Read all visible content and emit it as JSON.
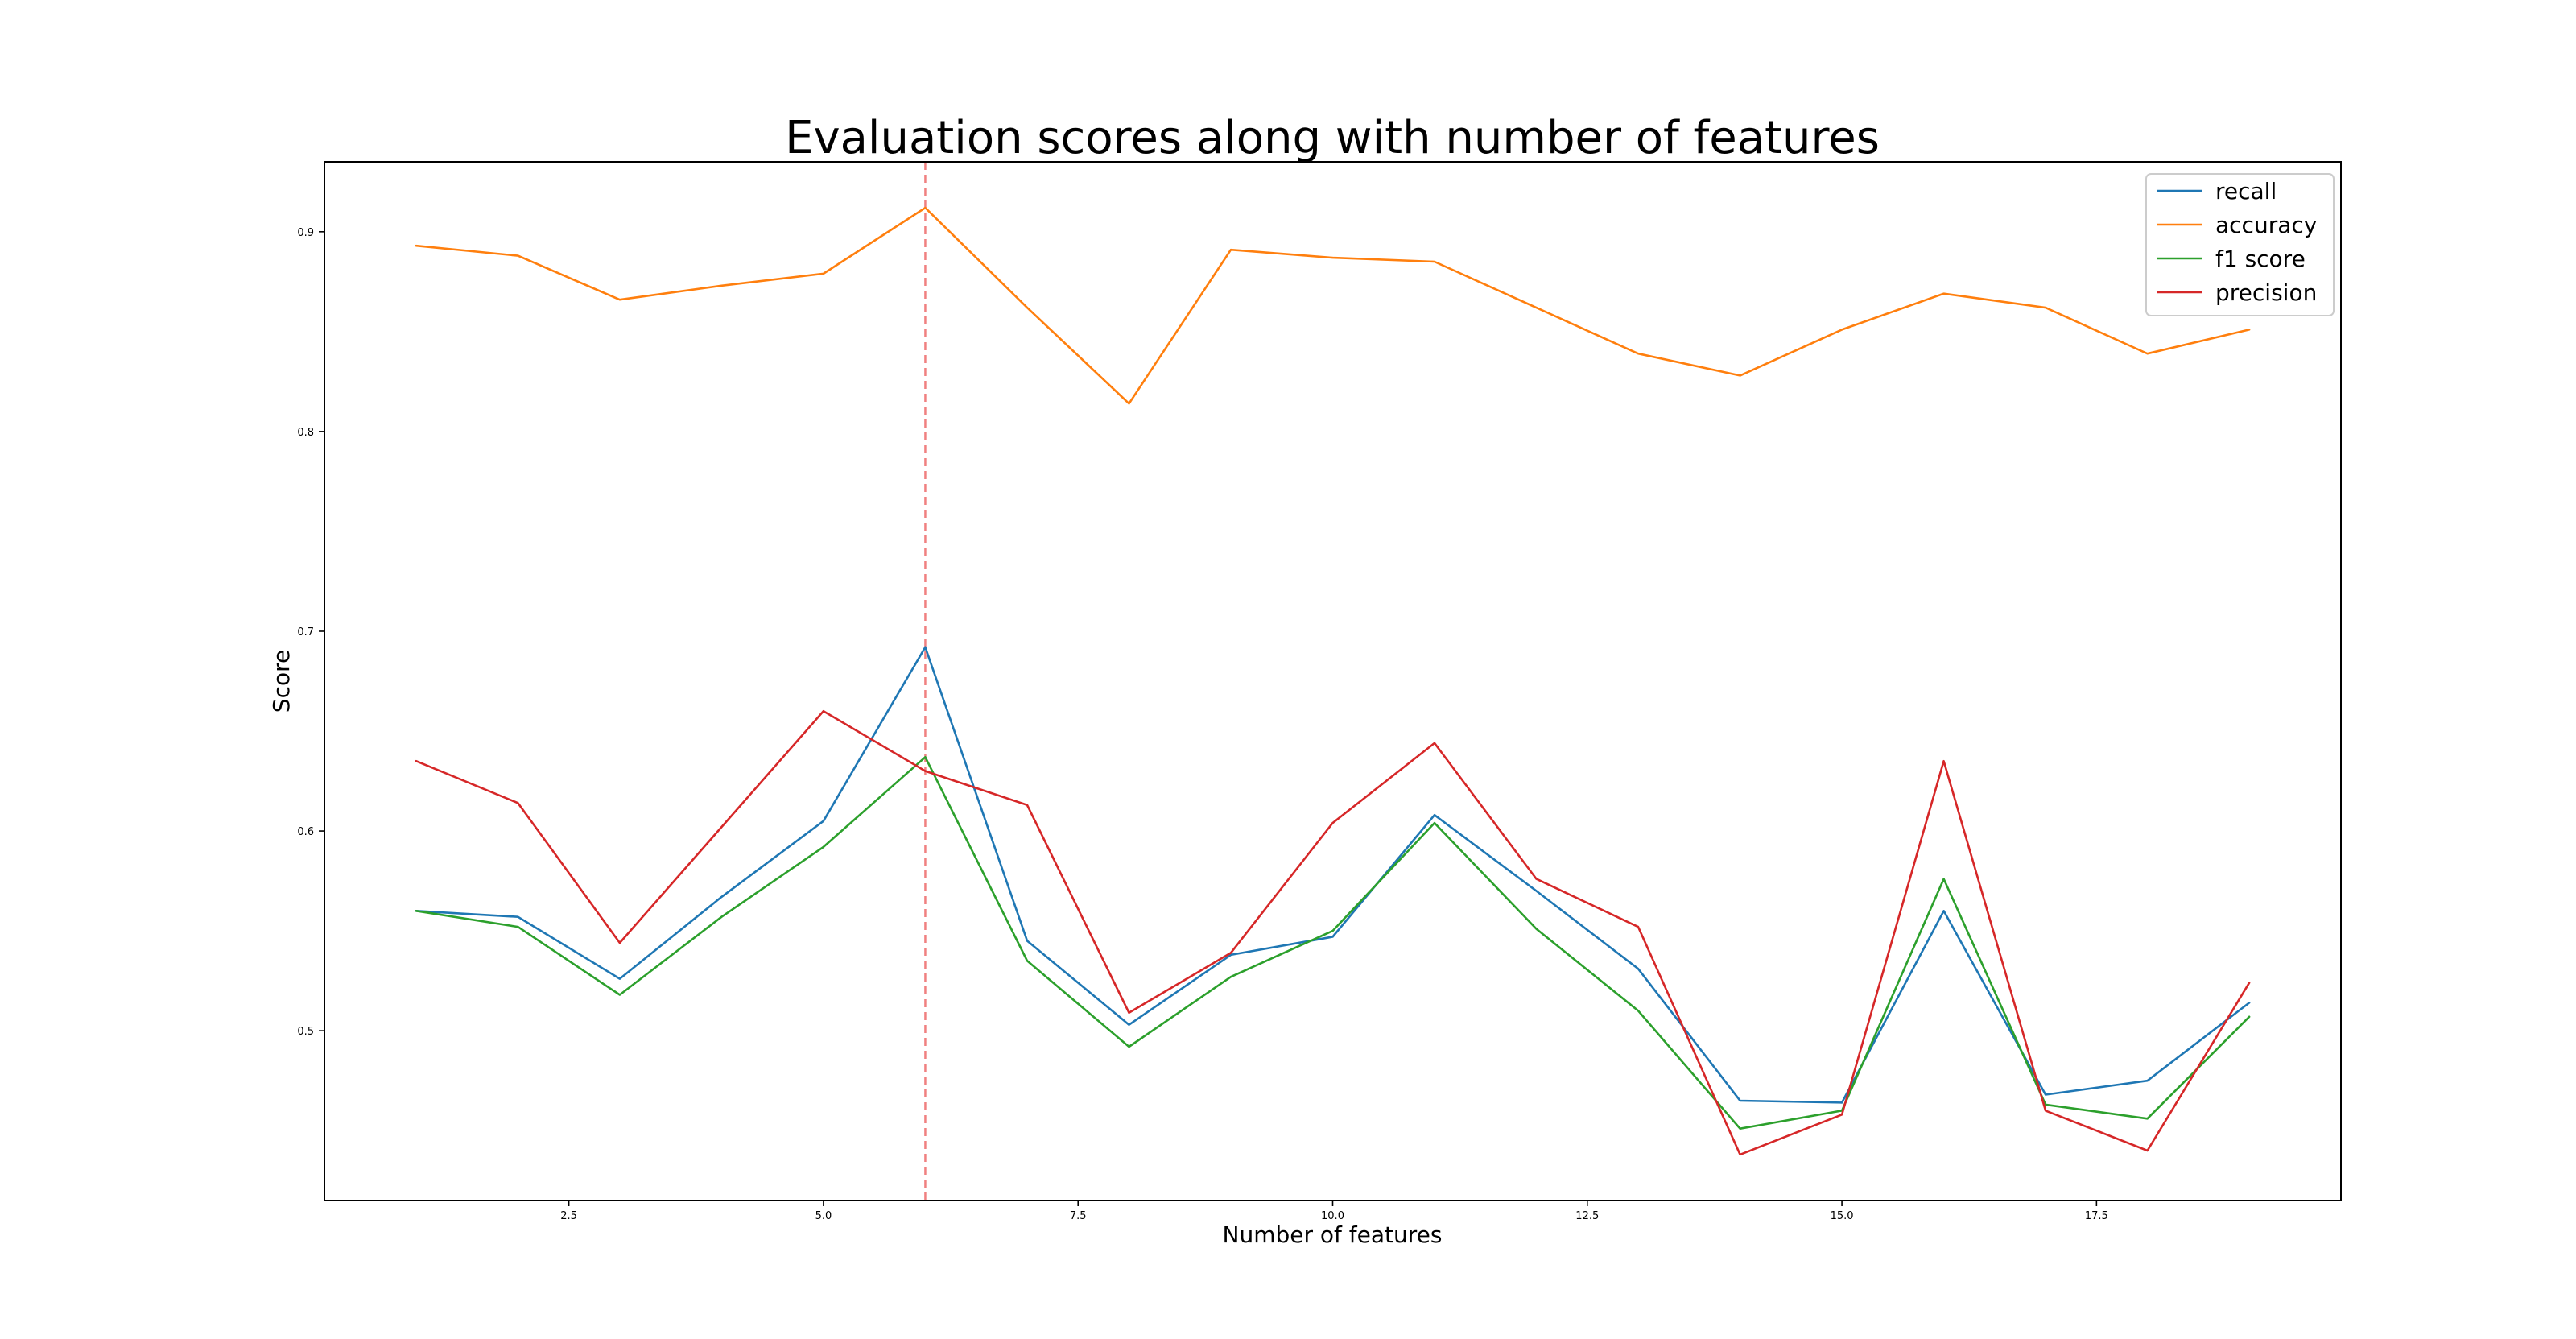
{
  "chart_data": {
    "type": "line",
    "title": "Evaluation scores along with number of features",
    "xlabel": "Number of features",
    "ylabel": "Score",
    "x": [
      1,
      2,
      3,
      4,
      5,
      6,
      7,
      8,
      9,
      10,
      11,
      12,
      13,
      14,
      15,
      16,
      17,
      18,
      19
    ],
    "xlim": [
      0.1,
      19.9
    ],
    "ylim": [
      0.415,
      0.935
    ],
    "xticks": [
      2.5,
      5.0,
      7.5,
      10.0,
      12.5,
      15.0,
      17.5
    ],
    "xtick_labels": [
      "2.5",
      "5.0",
      "7.5",
      "10.0",
      "12.5",
      "15.0",
      "17.5"
    ],
    "yticks": [
      0.5,
      0.6,
      0.7,
      0.8,
      0.9
    ],
    "ytick_labels": [
      "0.5",
      "0.6",
      "0.7",
      "0.8",
      "0.9"
    ],
    "grid": false,
    "legend_position": "top-right",
    "vline": {
      "x": 6,
      "color": "#f08080",
      "style": "dashed"
    },
    "series": [
      {
        "name": "recall",
        "color": "#1f77b4",
        "values": [
          0.56,
          0.557,
          0.526,
          0.567,
          0.605,
          0.692,
          0.545,
          0.503,
          0.538,
          0.547,
          0.608,
          0.57,
          0.531,
          0.465,
          0.464,
          0.56,
          0.468,
          0.475,
          0.514
        ]
      },
      {
        "name": "accuracy",
        "color": "#ff7f0e",
        "values": [
          0.893,
          0.888,
          0.866,
          0.873,
          0.879,
          0.912,
          0.862,
          0.814,
          0.891,
          0.887,
          0.885,
          0.862,
          0.839,
          0.828,
          0.851,
          0.869,
          0.862,
          0.839,
          0.851
        ]
      },
      {
        "name": "f1 score",
        "color": "#2ca02c",
        "values": [
          0.56,
          0.552,
          0.518,
          0.557,
          0.592,
          0.637,
          0.535,
          0.492,
          0.527,
          0.55,
          0.604,
          0.551,
          0.51,
          0.451,
          0.46,
          0.576,
          0.463,
          0.456,
          0.507
        ]
      },
      {
        "name": "precision",
        "color": "#d62728",
        "values": [
          0.635,
          0.614,
          0.544,
          0.602,
          0.66,
          0.63,
          0.613,
          0.509,
          0.539,
          0.604,
          0.644,
          0.576,
          0.552,
          0.438,
          0.458,
          0.635,
          0.46,
          0.44,
          0.524
        ]
      }
    ]
  }
}
